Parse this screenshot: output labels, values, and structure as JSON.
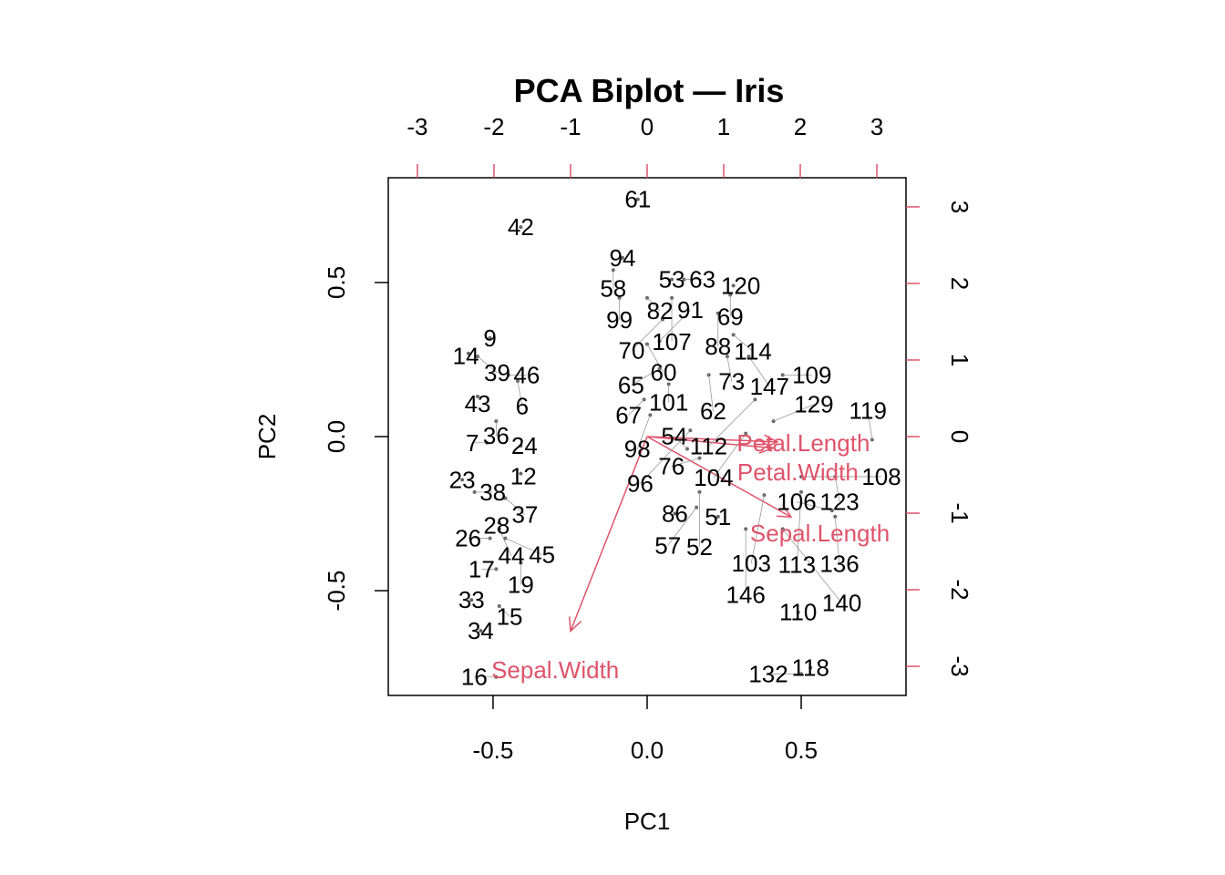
{
  "chart_data": {
    "type": "scatter",
    "subtype": "biplot",
    "title": "PCA Biplot — Iris",
    "xlabel": "PC1",
    "ylabel": "PC2",
    "xlim": [
      -0.84,
      0.84
    ],
    "ylim": [
      -0.84,
      0.84
    ],
    "xticks": [
      "-0.5",
      "0.0",
      "0.5"
    ],
    "xtick_values": [
      -0.5,
      0,
      0.5
    ],
    "yticks": [
      "-0.5",
      "0.0",
      "0.5"
    ],
    "ytick_values": [
      -0.5,
      0,
      0.5
    ],
    "loading_axis_ticks": [
      "-3",
      "-2",
      "-1",
      "0",
      "1",
      "2",
      "3"
    ],
    "loading_axis_values": [
      -3,
      -2,
      -1,
      0,
      1,
      2,
      3
    ],
    "loading_scale": 4.024,
    "colors": {
      "points": "#000000",
      "arrows": "#DF536B"
    },
    "points": [
      {
        "label": "61",
        "x": -0.03,
        "y": 0.77
      },
      {
        "label": "42",
        "x": -0.41,
        "y": 0.68
      },
      {
        "label": "94",
        "x": -0.08,
        "y": 0.58
      },
      {
        "label": "58",
        "x": -0.11,
        "y": 0.54
      },
      {
        "label": "53",
        "x": 0.08,
        "y": 0.51
      },
      {
        "label": "63",
        "x": 0.12,
        "y": 0.51
      },
      {
        "label": "120",
        "x": 0.28,
        "y": 0.49
      },
      {
        "label": "69",
        "x": 0.27,
        "y": 0.46
      },
      {
        "label": "99",
        "x": -0.09,
        "y": 0.45
      },
      {
        "label": "82",
        "x": 0.0,
        "y": 0.45
      },
      {
        "label": "107",
        "x": 0.08,
        "y": 0.45
      },
      {
        "label": "88",
        "x": 0.23,
        "y": 0.4
      },
      {
        "label": "70",
        "x": 0.05,
        "y": 0.38
      },
      {
        "label": "114",
        "x": 0.28,
        "y": 0.33
      },
      {
        "label": "9",
        "x": -0.51,
        "y": 0.32
      },
      {
        "label": "14",
        "x": -0.58,
        "y": 0.27
      },
      {
        "label": "39",
        "x": -0.55,
        "y": 0.26
      },
      {
        "label": "60",
        "x": 0.0,
        "y": 0.3
      },
      {
        "label": "91",
        "x": 0.04,
        "y": 0.31
      },
      {
        "label": "73",
        "x": 0.26,
        "y": 0.26
      },
      {
        "label": "147",
        "x": 0.33,
        "y": 0.26
      },
      {
        "label": "109",
        "x": 0.44,
        "y": 0.2
      },
      {
        "label": "46",
        "x": -0.45,
        "y": 0.2
      },
      {
        "label": "6",
        "x": -0.42,
        "y": 0.18
      },
      {
        "label": "65",
        "x": 0.04,
        "y": 0.22
      },
      {
        "label": "101",
        "x": 0.07,
        "y": 0.17
      },
      {
        "label": "43",
        "x": -0.55,
        "y": 0.13
      },
      {
        "label": "62",
        "x": 0.2,
        "y": 0.2
      },
      {
        "label": "67",
        "x": -0.01,
        "y": 0.12
      },
      {
        "label": "112",
        "x": 0.35,
        "y": 0.12
      },
      {
        "label": "36",
        "x": -0.49,
        "y": 0.05
      },
      {
        "label": "24",
        "x": -0.41,
        "y": -0.03
      },
      {
        "label": "7",
        "x": -0.52,
        "y": -0.02
      },
      {
        "label": "129",
        "x": 0.41,
        "y": 0.05
      },
      {
        "label": "104",
        "x": 0.32,
        "y": 0.01
      },
      {
        "label": "119",
        "x": 0.73,
        "y": -0.01
      },
      {
        "label": "123",
        "x": 0.61,
        "y": -0.13
      },
      {
        "label": "23",
        "x": -0.6,
        "y": -0.14
      },
      {
        "label": "12",
        "x": -0.41,
        "y": -0.12
      },
      {
        "label": "38",
        "x": -0.56,
        "y": -0.18
      },
      {
        "label": "37",
        "x": -0.46,
        "y": -0.2
      },
      {
        "label": "28",
        "x": -0.48,
        "y": -0.28
      },
      {
        "label": "44",
        "x": -0.48,
        "y": -0.3
      },
      {
        "label": "26",
        "x": -0.51,
        "y": -0.33
      },
      {
        "label": "45",
        "x": -0.46,
        "y": -0.33
      },
      {
        "label": "19",
        "x": -0.41,
        "y": -0.41
      },
      {
        "label": "17",
        "x": -0.49,
        "y": -0.43
      },
      {
        "label": "33",
        "x": -0.57,
        "y": -0.53
      },
      {
        "label": "15",
        "x": -0.48,
        "y": -0.55
      },
      {
        "label": "34",
        "x": -0.54,
        "y": -0.63
      },
      {
        "label": "16",
        "x": -0.49,
        "y": -0.78
      },
      {
        "label": "110",
        "x": 0.49,
        "y": -0.57
      },
      {
        "label": "118",
        "x": 0.53,
        "y": -0.75
      },
      {
        "label": "132",
        "x": 0.5,
        "y": -0.77
      },
      {
        "label": "86",
        "x": 0.09,
        "y": -0.25
      },
      {
        "label": "51",
        "x": 0.23,
        "y": -0.26
      },
      {
        "label": "106",
        "x": 0.6,
        "y": -0.24
      },
      {
        "label": "136",
        "x": 0.61,
        "y": -0.26
      },
      {
        "label": "76",
        "x": 0.17,
        "y": -0.07
      },
      {
        "label": "52",
        "x": 0.17,
        "y": -0.18
      },
      {
        "label": "57",
        "x": 0.16,
        "y": -0.23
      },
      {
        "label": "108",
        "x": 0.5,
        "y": -0.13
      },
      {
        "label": "113",
        "x": 0.5,
        "y": -0.18
      },
      {
        "label": "103",
        "x": 0.38,
        "y": -0.19
      },
      {
        "label": "146",
        "x": 0.32,
        "y": -0.3
      },
      {
        "label": "140",
        "x": 0.44,
        "y": -0.3
      },
      {
        "label": "98",
        "x": 0.01,
        "y": 0.07
      },
      {
        "label": "96",
        "x": 0.14,
        "y": 0.02
      },
      {
        "label": "54",
        "x": 0.13,
        "y": -0.04
      }
    ],
    "loadings": [
      {
        "label": "Sepal.Length",
        "x": 1.88,
        "y": -1.05
      },
      {
        "label": "Sepal.Width",
        "x": -1.0,
        "y": -2.54
      },
      {
        "label": "Petal.Length",
        "x": 1.7,
        "y": -0.07
      },
      {
        "label": "Petal.Width",
        "x": 1.64,
        "y": -0.15
      }
    ]
  }
}
